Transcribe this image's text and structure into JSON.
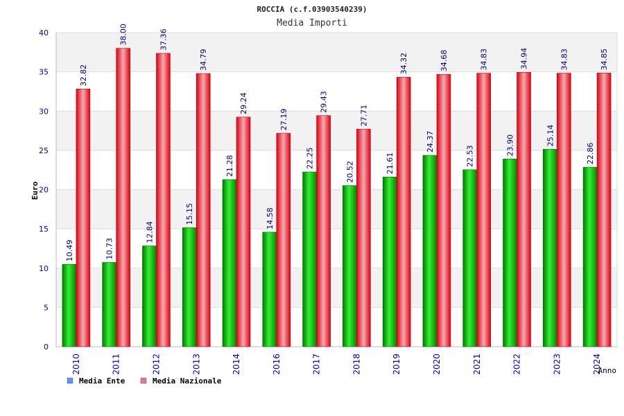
{
  "chart_data": {
    "type": "bar",
    "title": "ROCCIA (c.f.03903540239)",
    "subtitle": "Media Importi",
    "ylabel": "Euro",
    "xlabel": "Anno",
    "ylim": [
      0,
      40
    ],
    "yticks": [
      0,
      5,
      10,
      15,
      20,
      25,
      30,
      35,
      40
    ],
    "grid": true,
    "legend_position": "bottom-left",
    "categories": [
      "2010",
      "2011",
      "2012",
      "2013",
      "2014",
      "2016",
      "2017",
      "2018",
      "2019",
      "2020",
      "2021",
      "2022",
      "2023",
      "2024"
    ],
    "series": [
      {
        "name": "Media Ente",
        "color": "#00bb00",
        "legend_color": "#5599ee",
        "values": [
          10.49,
          10.73,
          12.84,
          15.15,
          21.28,
          14.58,
          22.25,
          20.52,
          21.61,
          24.37,
          22.53,
          23.9,
          25.14,
          22.86
        ],
        "labels": [
          "10.49",
          "10.73",
          "12.84",
          "15.15",
          "21.28",
          "14.58",
          "22.25",
          "20.52",
          "21.61",
          "24.37",
          "22.53",
          "23.90",
          "25.14",
          "22.86"
        ]
      },
      {
        "name": "Media Nazionale",
        "color": "#ee1122",
        "legend_color": "#dd77aa",
        "values": [
          32.82,
          38.0,
          37.36,
          34.79,
          29.24,
          27.19,
          29.43,
          27.71,
          34.32,
          34.68,
          34.83,
          34.94,
          34.83,
          34.85
        ],
        "labels": [
          "32.82",
          "38.00",
          "37.36",
          "34.79",
          "29.24",
          "27.19",
          "29.43",
          "27.71",
          "34.32",
          "34.68",
          "34.83",
          "34.94",
          "34.83",
          "34.85"
        ]
      }
    ]
  }
}
